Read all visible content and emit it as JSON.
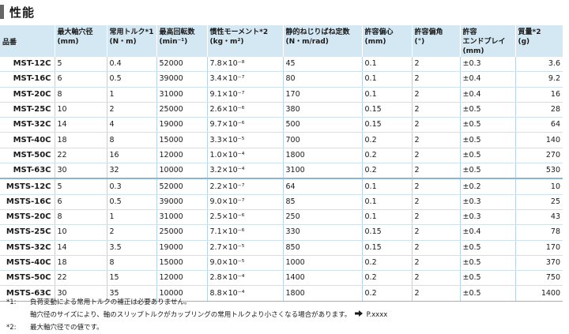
{
  "section": {
    "title": "性能"
  },
  "table": {
    "headers": [
      "品番",
      "最大軸穴径\n(mm)",
      "常用トルク*1\n(N・m)",
      "最高回転数\n(min⁻¹)",
      "慣性モーメント*2\n(kg・m²)",
      "静的ねじりばね定数\n(N・m/rad)",
      "許容偏心\n(mm)",
      "許容偏角\n(°)",
      "許容\nエンドプレイ\n(mm)",
      "質量*2\n(g)"
    ],
    "rows": [
      [
        "MST-12C",
        "5",
        "0.4",
        "52000",
        "7.8×10⁻⁸",
        "45",
        "0.1",
        "2",
        "±0.3",
        "3.6"
      ],
      [
        "MST-16C",
        "6",
        "0.5",
        "39000",
        "3.4×10⁻⁷",
        "80",
        "0.1",
        "2",
        "±0.4",
        "9.2"
      ],
      [
        "MST-20C",
        "8",
        "1",
        "31000",
        "9.1×10⁻⁷",
        "170",
        "0.1",
        "2",
        "±0.4",
        "16"
      ],
      [
        "MST-25C",
        "10",
        "2",
        "25000",
        "2.6×10⁻⁶",
        "380",
        "0.15",
        "2",
        "±0.5",
        "28"
      ],
      [
        "MST-32C",
        "14",
        "4",
        "19000",
        "9.7×10⁻⁶",
        "500",
        "0.15",
        "2",
        "±0.5",
        "64"
      ],
      [
        "MST-40C",
        "18",
        "8",
        "15000",
        "3.3×10⁻⁵",
        "700",
        "0.2",
        "2",
        "±0.5",
        "140"
      ],
      [
        "MST-50C",
        "22",
        "16",
        "12000",
        "1.0×10⁻⁴",
        "1800",
        "0.2",
        "2",
        "±0.5",
        "270"
      ],
      [
        "MST-63C",
        "30",
        "32",
        "10000",
        "3.2×10⁻⁴",
        "3100",
        "0.2",
        "2",
        "±0.5",
        "530"
      ],
      [
        "MSTS-12C",
        "5",
        "0.3",
        "52000",
        "2.2×10⁻⁷",
        "64",
        "0.1",
        "2",
        "±0.2",
        "10"
      ],
      [
        "MSTS-16C",
        "6",
        "0.5",
        "39000",
        "9.0×10⁻⁷",
        "85",
        "0.1",
        "2",
        "±0.3",
        "25"
      ],
      [
        "MSTS-20C",
        "8",
        "1",
        "31000",
        "2.5×10⁻⁶",
        "250",
        "0.1",
        "2",
        "±0.3",
        "43"
      ],
      [
        "MSTS-25C",
        "10",
        "2",
        "25000",
        "7.1×10⁻⁶",
        "330",
        "0.15",
        "2",
        "±0.4",
        "78"
      ],
      [
        "MSTS-32C",
        "14",
        "3.5",
        "19000",
        "2.7×10⁻⁵",
        "850",
        "0.15",
        "2",
        "±0.5",
        "170"
      ],
      [
        "MSTS-40C",
        "18",
        "8",
        "15000",
        "9.0×10⁻⁵",
        "1000",
        "0.2",
        "2",
        "±0.5",
        "370"
      ],
      [
        "MSTS-50C",
        "22",
        "15",
        "12000",
        "2.8×10⁻⁴",
        "1400",
        "0.2",
        "2",
        "±0.5",
        "750"
      ],
      [
        "MSTS-63C",
        "30",
        "35",
        "10000",
        "8.8×10⁻⁴",
        "1800",
        "0.2",
        "2",
        "±0.5",
        "1400"
      ]
    ]
  },
  "notes": {
    "note1_mark": "*1:",
    "note1_text": "負荷変動による常用トルクの補正は必要ありません。",
    "note1_sub": "軸穴径のサイズにより、軸のスリップトルクがカップリングの常用トルクより小さくなる場合があります。",
    "note1_ref": "P.xxxx",
    "note2_mark": "*2:",
    "note2_text": "最大軸穴径での値です。",
    "arrow_icon": "arrow-right-icon"
  }
}
